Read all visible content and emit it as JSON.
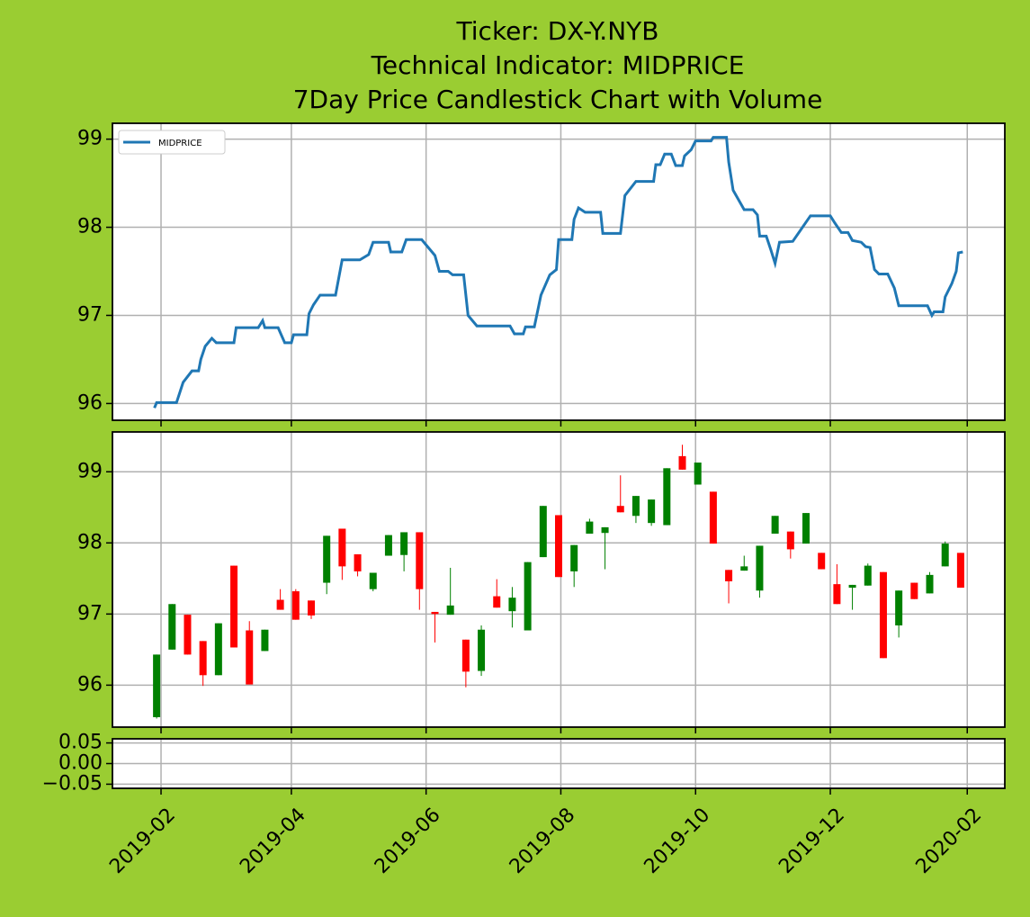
{
  "chart_data": [
    {
      "type": "line",
      "title": [
        "Ticker: DX-Y.NYB",
        "Technical Indicator: MIDPRICE",
        "7Day Price Candlestick Chart with Volume"
      ],
      "x": [
        "2019-01-29",
        "2019-01-30",
        "2019-02-08",
        "2019-02-11",
        "2019-02-15",
        "2019-02-18",
        "2019-02-19",
        "2019-02-21",
        "2019-02-24",
        "2019-02-26",
        "2019-03-06",
        "2019-03-07",
        "2019-03-17",
        "2019-03-19",
        "2019-03-20",
        "2019-03-26",
        "2019-03-29",
        "2019-04-01",
        "2019-04-02",
        "2019-04-08",
        "2019-04-09",
        "2019-04-11",
        "2019-04-14",
        "2019-04-21",
        "2019-04-24",
        "2019-05-02",
        "2019-05-06",
        "2019-05-08",
        "2019-05-15",
        "2019-05-16",
        "2019-05-21",
        "2019-05-23",
        "2019-05-30",
        "2019-06-01",
        "2019-06-05",
        "2019-06-07",
        "2019-06-11",
        "2019-06-13",
        "2019-06-18",
        "2019-06-20",
        "2019-06-24",
        "2019-07-09",
        "2019-07-11",
        "2019-07-15",
        "2019-07-16",
        "2019-07-20",
        "2019-07-23",
        "2019-07-27",
        "2019-07-30",
        "2019-07-31",
        "2019-08-06",
        "2019-08-07",
        "2019-08-09",
        "2019-08-12",
        "2019-08-19",
        "2019-08-20",
        "2019-08-28",
        "2019-08-30",
        "2019-09-04",
        "2019-09-12",
        "2019-09-13",
        "2019-09-15",
        "2019-09-17",
        "2019-09-20",
        "2019-09-22",
        "2019-09-25",
        "2019-09-26",
        "2019-09-29",
        "2019-10-01",
        "2019-10-08",
        "2019-10-09",
        "2019-10-15",
        "2019-10-16",
        "2019-10-18",
        "2019-10-23",
        "2019-10-27",
        "2019-10-29",
        "2019-10-30",
        "2019-11-02",
        "2019-11-04",
        "2019-11-06",
        "2019-11-08",
        "2019-11-14",
        "2019-11-22",
        "2019-12-01",
        "2019-12-03",
        "2019-12-06",
        "2019-12-09",
        "2019-12-11",
        "2019-12-15",
        "2019-12-17",
        "2019-12-19",
        "2019-12-21",
        "2019-12-23",
        "2019-12-27",
        "2019-12-30",
        "2020-01-01",
        "2020-01-14",
        "2020-01-16",
        "2020-01-17",
        "2020-01-21",
        "2020-01-22",
        "2020-01-25",
        "2020-01-27",
        "2020-01-28",
        "2020-01-30"
      ],
      "series": [
        {
          "name": "MIDPRICE",
          "color": "#1f77b4",
          "values": [
            95.95,
            96.01,
            96.01,
            96.24,
            96.37,
            96.37,
            96.5,
            96.65,
            96.74,
            96.69,
            96.69,
            96.86,
            96.86,
            96.94,
            96.86,
            96.86,
            96.69,
            96.69,
            96.78,
            96.78,
            97.02,
            97.12,
            97.23,
            97.23,
            97.63,
            97.63,
            97.69,
            97.83,
            97.83,
            97.72,
            97.72,
            97.86,
            97.86,
            97.8,
            97.68,
            97.5,
            97.5,
            97.46,
            97.46,
            97.0,
            96.88,
            96.88,
            96.79,
            96.79,
            96.87,
            96.87,
            97.23,
            97.46,
            97.52,
            97.86,
            97.86,
            98.09,
            98.22,
            98.17,
            98.17,
            97.93,
            97.93,
            98.36,
            98.52,
            98.52,
            98.71,
            98.71,
            98.83,
            98.83,
            98.7,
            98.7,
            98.81,
            98.88,
            98.98,
            98.98,
            99.02,
            99.02,
            98.74,
            98.42,
            98.2,
            98.2,
            98.14,
            97.9,
            97.9,
            97.75,
            97.59,
            97.83,
            97.84,
            98.13,
            98.13,
            98.05,
            97.94,
            97.94,
            97.85,
            97.83,
            97.78,
            97.77,
            97.52,
            97.47,
            97.47,
            97.31,
            97.11,
            97.11,
            97.0,
            97.04,
            97.04,
            97.21,
            97.36,
            97.5,
            97.71,
            97.72
          ]
        }
      ],
      "xlim": [
        "2019-01-10",
        "2020-02-18"
      ],
      "ylim": [
        95.81,
        99.18
      ],
      "yticks": [
        96,
        97,
        98,
        99
      ],
      "grid": true,
      "legend": "upper left"
    },
    {
      "type": "candlestick",
      "x": [
        "2019-01-30",
        "2019-02-06",
        "2019-02-13",
        "2019-02-20",
        "2019-02-27",
        "2019-03-06",
        "2019-03-13",
        "2019-03-20",
        "2019-03-27",
        "2019-04-03",
        "2019-04-10",
        "2019-04-17",
        "2019-04-24",
        "2019-05-01",
        "2019-05-08",
        "2019-05-15",
        "2019-05-22",
        "2019-05-29",
        "2019-06-05",
        "2019-06-12",
        "2019-06-19",
        "2019-06-26",
        "2019-07-03",
        "2019-07-10",
        "2019-07-17",
        "2019-07-24",
        "2019-07-31",
        "2019-08-07",
        "2019-08-14",
        "2019-08-21",
        "2019-08-28",
        "2019-09-04",
        "2019-09-11",
        "2019-09-18",
        "2019-09-25",
        "2019-10-02",
        "2019-10-09",
        "2019-10-16",
        "2019-10-23",
        "2019-10-30",
        "2019-11-06",
        "2019-11-13",
        "2019-11-20",
        "2019-11-27",
        "2019-12-04",
        "2019-12-11",
        "2019-12-18",
        "2019-12-25",
        "2020-01-01",
        "2020-01-08",
        "2020-01-15",
        "2020-01-22",
        "2020-01-29"
      ],
      "open": [
        95.55,
        96.5,
        96.99,
        96.62,
        96.14,
        97.68,
        96.77,
        96.48,
        97.2,
        97.32,
        97.19,
        97.44,
        98.2,
        97.84,
        97.35,
        97.82,
        97.83,
        98.15,
        97.03,
        96.99,
        96.64,
        96.2,
        97.25,
        97.04,
        96.77,
        97.8,
        98.39,
        97.6,
        98.13,
        98.14,
        98.52,
        98.38,
        98.28,
        98.25,
        99.22,
        98.82,
        98.72,
        97.62,
        97.61,
        97.33,
        98.13,
        98.16,
        97.99,
        97.86,
        97.42,
        97.37,
        97.4,
        97.59,
        96.84,
        97.44,
        97.29,
        97.67,
        97.86
      ],
      "high": [
        96.43,
        97.14,
        96.99,
        96.62,
        96.87,
        97.68,
        96.9,
        96.78,
        97.35,
        97.35,
        97.19,
        98.1,
        98.2,
        97.84,
        97.58,
        98.11,
        98.15,
        98.15,
        97.03,
        97.65,
        96.64,
        96.84,
        97.49,
        97.38,
        97.73,
        98.52,
        98.39,
        97.97,
        98.34,
        98.22,
        98.95,
        98.66,
        98.61,
        99.05,
        99.38,
        99.13,
        98.72,
        97.62,
        97.82,
        97.96,
        98.38,
        98.16,
        98.42,
        97.86,
        97.7,
        97.41,
        97.71,
        97.59,
        97.33,
        97.44,
        97.59,
        98.02,
        97.86
      ],
      "low": [
        95.53,
        96.5,
        96.43,
        95.99,
        96.14,
        96.53,
        96.01,
        96.48,
        97.06,
        96.92,
        96.93,
        97.28,
        97.48,
        97.53,
        97.32,
        97.82,
        97.6,
        97.06,
        96.6,
        96.99,
        95.97,
        96.13,
        97.09,
        96.81,
        96.77,
        97.8,
        97.52,
        97.38,
        98.13,
        97.63,
        98.43,
        98.28,
        98.24,
        98.25,
        99.03,
        98.82,
        97.99,
        97.15,
        97.61,
        97.23,
        98.13,
        97.78,
        97.99,
        97.63,
        97.14,
        97.06,
        97.4,
        96.38,
        96.67,
        97.21,
        97.29,
        97.67,
        97.37
      ],
      "close": [
        96.43,
        97.14,
        96.43,
        96.14,
        96.87,
        96.53,
        96.01,
        96.78,
        97.06,
        96.92,
        96.98,
        98.1,
        97.67,
        97.6,
        97.58,
        98.11,
        98.15,
        97.35,
        97.0,
        97.12,
        96.19,
        96.78,
        97.09,
        97.23,
        97.73,
        98.52,
        97.52,
        97.97,
        98.3,
        98.22,
        98.43,
        98.66,
        98.61,
        99.05,
        99.03,
        99.13,
        97.99,
        97.46,
        97.67,
        97.96,
        98.38,
        97.91,
        98.42,
        97.63,
        97.14,
        97.41,
        97.68,
        96.38,
        97.33,
        97.21,
        97.55,
        97.99,
        97.37
      ],
      "up_color": "green",
      "down_color": "red",
      "xlim": [
        "2019-01-10",
        "2020-02-18"
      ],
      "ylim": [
        95.41,
        99.56
      ],
      "yticks": [
        96,
        97,
        98,
        99
      ],
      "grid": true
    },
    {
      "type": "bar",
      "xlim": [
        "2019-01-10",
        "2020-02-18"
      ],
      "ylim": [
        -0.06,
        0.06
      ],
      "yticks": [
        {
          "value": 0.05,
          "label": "0.05"
        },
        {
          "value": 0,
          "label": "0.00"
        },
        {
          "value": -0.05,
          "label": "−0.05"
        }
      ],
      "xticks": [
        {
          "value": "2019-02-01",
          "label": "2019-02"
        },
        {
          "value": "2019-04-01",
          "label": "2019-04"
        },
        {
          "value": "2019-06-01",
          "label": "2019-06"
        },
        {
          "value": "2019-08-01",
          "label": "2019-08"
        },
        {
          "value": "2019-10-01",
          "label": "2019-10"
        },
        {
          "value": "2019-12-01",
          "label": "2019-12"
        },
        {
          "value": "2020-02-01",
          "label": "2020-02"
        }
      ],
      "grid": true
    }
  ]
}
